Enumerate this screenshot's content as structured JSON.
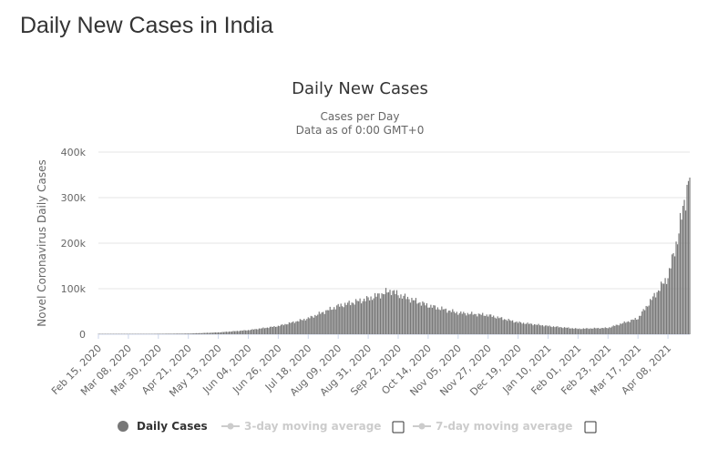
{
  "page": {
    "heading": "Daily New Cases in India"
  },
  "colors": {
    "bar": "#777777",
    "grid": "#e6e6e6",
    "legend_inactive": "#cccccc",
    "axis_line": "#ccd6eb"
  },
  "legend": [
    {
      "label": "Daily Cases",
      "active": true,
      "icon": "circle-icon"
    },
    {
      "label": "3-day moving average",
      "active": false,
      "icon": "line-dot-icon"
    },
    {
      "label": "7-day moving average",
      "active": false,
      "icon": "line-dot-icon"
    }
  ],
  "chart_data": {
    "type": "bar",
    "title": "Daily New Cases",
    "subtitle": "Cases per Day",
    "subtitle2": "Data as of 0:00 GMT+0",
    "xlabel": "",
    "ylabel": "Novel Coronavirus Daily Cases",
    "ylim": [
      0,
      400000
    ],
    "yticks": [
      0,
      100000,
      200000,
      300000,
      400000
    ],
    "ytick_labels": [
      "0",
      "100k",
      "200k",
      "300k",
      "400k"
    ],
    "x_start": "2020-02-15",
    "x_end": "2021-04-24",
    "xtick_labels": [
      "Feb 15, 2020",
      "Mar 08, 2020",
      "Mar 30, 2020",
      "Apr 21, 2020",
      "May 13, 2020",
      "Jun 04, 2020",
      "Jun 26, 2020",
      "Jul 18, 2020",
      "Aug 09, 2020",
      "Aug 31, 2020",
      "Sep 22, 2020",
      "Oct 14, 2020",
      "Nov 05, 2020",
      "Nov 27, 2020",
      "Dec 19, 2020",
      "Jan 10, 2021",
      "Feb 01, 2021",
      "Feb 23, 2021",
      "Mar 17, 2021",
      "Apr 08, 2021"
    ],
    "grid": true,
    "legend_position": "bottom",
    "series": [
      {
        "name": "Daily Cases",
        "x": [
          "2020-02-15",
          "2020-03-08",
          "2020-03-30",
          "2020-04-21",
          "2020-05-13",
          "2020-06-04",
          "2020-06-26",
          "2020-07-18",
          "2020-08-09",
          "2020-08-31",
          "2020-09-17",
          "2020-09-22",
          "2020-10-14",
          "2020-11-05",
          "2020-11-27",
          "2020-12-19",
          "2021-01-10",
          "2021-02-01",
          "2021-02-23",
          "2021-03-17",
          "2021-04-08",
          "2021-04-15",
          "2021-04-20",
          "2021-04-24"
        ],
        "values": [
          0,
          50,
          1000,
          1500,
          4000,
          9000,
          18000,
          35000,
          62000,
          78000,
          96000,
          87000,
          63000,
          47000,
          42000,
          26000,
          18000,
          12000,
          14000,
          35000,
          126000,
          210000,
          290000,
          350000
        ]
      }
    ]
  }
}
